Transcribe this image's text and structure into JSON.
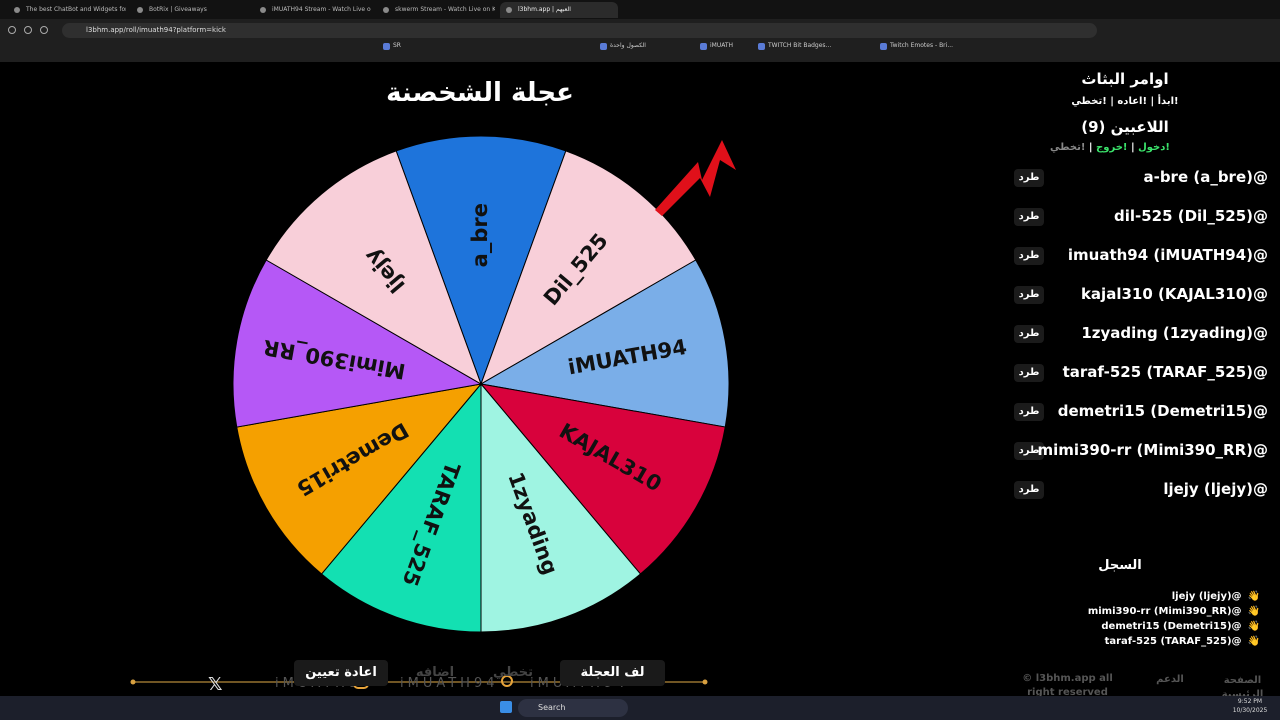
{
  "browser": {
    "tabs": [
      "The best ChatBot and Widgets for K",
      "BotRix | Giveaways",
      "iMUATH94 Stream - Watch Live o",
      "skwerm Stream - Watch Live on Kick",
      "l3bhm.app | العبهم"
    ],
    "url": "l3bhm.app/roll/imuath94?platform=kick",
    "bookmarks": [
      "SR",
      "الكصول واحدة",
      "iMUATH",
      "TWITCH Bit Badges...",
      "Twitch Emotes - Bri..."
    ]
  },
  "wheel": {
    "title": "عجلة الشخصنة",
    "segments": [
      {
        "label": "a_bre",
        "color": "#1e74db"
      },
      {
        "label": "Dil_525",
        "color": "#f8cfd9"
      },
      {
        "label": "iMUATH94",
        "color": "#7aaee8"
      },
      {
        "label": "KAJAL310",
        "color": "#d8023c"
      },
      {
        "label": "1zyading",
        "color": "#9ff4e2"
      },
      {
        "label": "TARAF_525",
        "color": "#13e0b2"
      },
      {
        "label": "Demetri15",
        "color": "#f5a000"
      },
      {
        "label": "Mimi390_RR",
        "color": "#b558f6"
      },
      {
        "label": "ljejy",
        "color": "#f8cfd9"
      }
    ]
  },
  "panel": {
    "commands_title": "اوامر البثاث",
    "commands": "!ابدأ | !اعاده | !تخطي",
    "players_title": "اللاعبين (9)",
    "player_commands": [
      "!دخول",
      "!خروج",
      "!تخطي"
    ],
    "kick_label": "طرد",
    "players": [
      "a-bre (a_bre)@",
      "dil-525 (Dil_525)@",
      "imuath94 (iMUATH94)@",
      "kajal310 (KAJAL310)@",
      "1zyading (1zyading)@",
      "taraf-525 (TARAF_525)@",
      "demetri15 (Demetri15)@",
      "mimi390-rr (Mimi390_RR)@",
      "ljejy (ljejy)@"
    ],
    "log_title": "السجل",
    "log_icon": "👋",
    "log": [
      "ljejy (ljejy)@",
      "mimi390-rr (Mimi390_RR)@",
      "demetri15 (Demetri15)@",
      "taraf-525 (TARAF_525)@"
    ]
  },
  "controls": {
    "reset": "اعادة تعيين",
    "add": "اضافه",
    "skip": "تخطي",
    "spin": "لف العجلة",
    "watermark": "iMUATH94"
  },
  "footer": {
    "copyright": "© l3bhm.app all right reserved",
    "support": "الدعم",
    "home": "الصفحة الرئيسية"
  },
  "taskbar": {
    "search": "Search",
    "time": "9:52 PM",
    "date": "10/30/2025"
  }
}
